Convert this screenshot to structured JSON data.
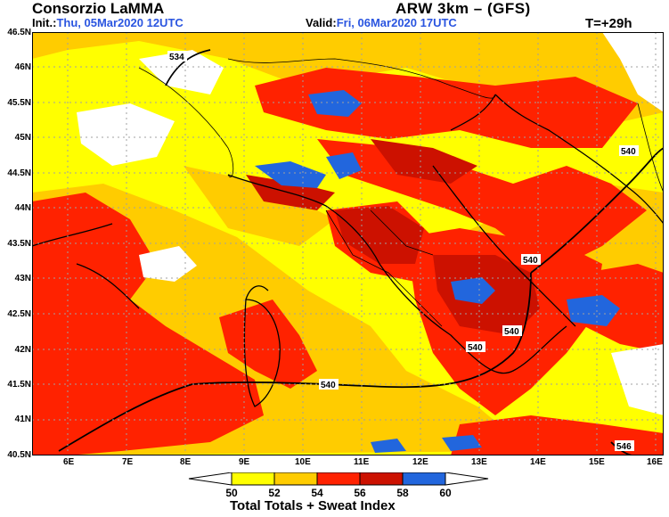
{
  "header": {
    "title_left": "Consorzio LaMMA",
    "title_right": "ARW 3km – (GFS)",
    "init_label": "Init.:",
    "init_value": "Thu, 05Mar2020  12UTC",
    "valid_label": "Valid:",
    "valid_value": "Fri,  06Mar2020  17UTC",
    "step": "T=+29h"
  },
  "map": {
    "lat_labels": [
      "46.5N",
      "46N",
      "45.5N",
      "45N",
      "44.5N",
      "44N",
      "43.5N",
      "43N",
      "42.5N",
      "42N",
      "41.5N",
      "41N",
      "40.5N"
    ],
    "lon_labels": [
      "6E",
      "7E",
      "8E",
      "9E",
      "10E",
      "11E",
      "12E",
      "13E",
      "14E",
      "15E",
      "16E"
    ],
    "lat_range": [
      40.5,
      46.5
    ],
    "lon_range": [
      5.4,
      16.1
    ],
    "contour_labels": [
      "534",
      "540",
      "540",
      "540",
      "540",
      "540",
      "546"
    ]
  },
  "legend": {
    "title": "Total Totals + Sweat Index",
    "values": [
      "50",
      "52",
      "54",
      "56",
      "58",
      "60"
    ],
    "colors": [
      "#ffffff",
      "#ffff00",
      "#ffcc00",
      "#ff2200",
      "#cc1100",
      "#2266dd"
    ],
    "text_color": "#2a55e0"
  }
}
